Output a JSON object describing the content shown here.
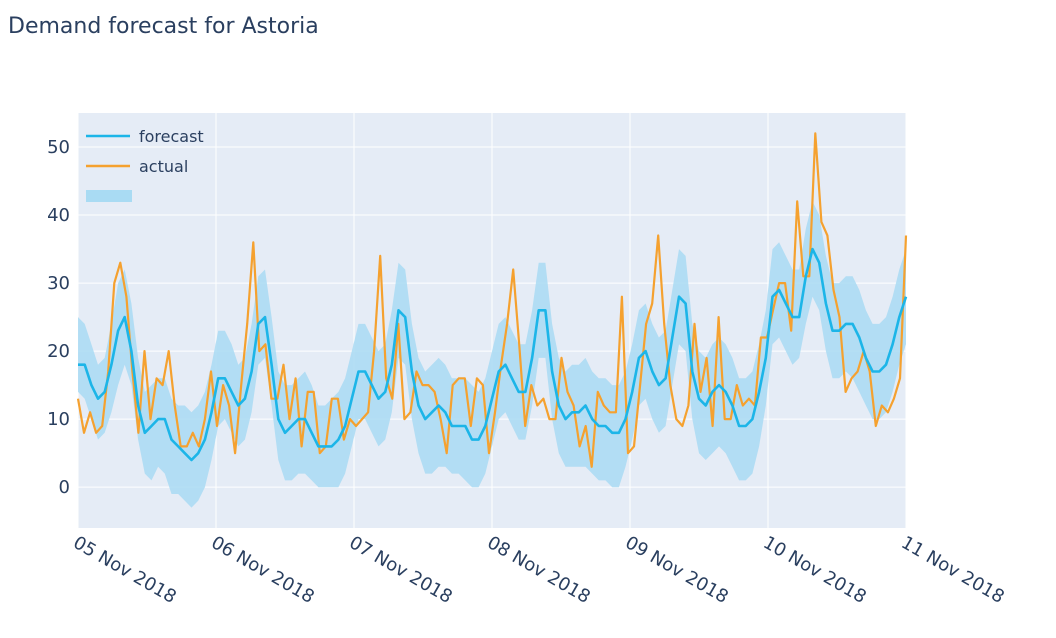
{
  "title": "Demand forecast for Astoria",
  "colors": {
    "forecast": "#1cb5e8",
    "actual": "#f5a12f",
    "band": "#a9dbf3",
    "plot_bg": "#e5ecf6",
    "grid": "#ffffff",
    "text": "#2a3f5f"
  },
  "chart_data": {
    "type": "line",
    "title": "Demand forecast for Astoria",
    "xlabel": "",
    "ylabel": "",
    "x_start": "2018-11-05 00:00",
    "x_step": "2 hours",
    "xlim": [
      "2018-11-05",
      "2018-11-11"
    ],
    "ylim": [
      -6,
      55
    ],
    "y_ticks": [
      0,
      10,
      20,
      30,
      40,
      50
    ],
    "x_tick_labels": [
      "05 Nov 2018",
      "06 Nov 2018",
      "07 Nov 2018",
      "08 Nov 2018",
      "09 Nov 2018",
      "10 Nov 2018",
      "11 Nov 2018"
    ],
    "grid": true,
    "legend_position": "top-left",
    "legend": [
      "forecast",
      "actual",
      ""
    ],
    "series": [
      {
        "name": "forecast",
        "values": [
          18,
          18,
          15,
          13,
          14,
          18,
          23,
          25,
          20,
          12,
          8,
          9,
          10,
          10,
          7,
          6,
          5,
          4,
          5,
          7,
          11,
          16,
          16,
          14,
          12,
          13,
          17,
          24,
          25,
          18,
          10,
          8,
          9,
          10,
          10,
          8,
          6,
          6,
          6,
          7,
          9,
          13,
          17,
          17,
          15,
          13,
          14,
          18,
          26,
          25,
          17,
          12,
          10,
          11,
          12,
          11,
          9,
          9,
          9,
          7,
          7,
          9,
          13,
          17,
          18,
          16,
          14,
          14,
          19,
          26,
          26,
          17,
          12,
          10,
          11,
          11,
          12,
          10,
          9,
          9,
          8,
          8,
          10,
          14,
          19,
          20,
          17,
          15,
          16,
          22,
          28,
          27,
          17,
          13,
          12,
          14,
          15,
          14,
          12,
          9,
          9,
          10,
          14,
          19,
          28,
          29,
          27,
          25,
          25,
          31,
          35,
          33,
          27,
          23,
          23,
          24,
          24,
          22,
          19,
          17,
          17,
          18,
          21,
          25,
          28
        ]
      },
      {
        "name": "actual",
        "values": [
          13,
          8,
          11,
          8,
          9,
          17,
          30,
          33,
          28,
          17,
          8,
          20,
          10,
          16,
          15,
          20,
          12,
          6,
          6,
          8,
          6,
          10,
          17,
          9,
          15,
          12,
          5,
          15,
          24,
          36,
          20,
          21,
          13,
          13,
          18,
          10,
          16,
          6,
          14,
          14,
          5,
          6,
          13,
          13,
          7,
          10,
          9,
          10,
          11,
          20,
          34,
          16,
          13,
          24,
          10,
          11,
          17,
          15,
          15,
          14,
          10,
          5,
          15,
          16,
          16,
          9,
          16,
          15,
          5,
          11,
          18,
          24,
          32,
          21,
          9,
          15,
          12,
          13,
          10,
          10,
          19,
          14,
          12,
          6,
          9,
          3,
          14,
          12,
          11,
          11,
          28,
          5,
          6,
          15,
          24,
          27,
          37,
          24,
          15,
          10,
          9,
          12,
          24,
          14,
          19,
          9,
          25,
          10,
          10,
          15,
          12,
          13,
          12,
          22,
          22,
          26,
          30,
          30,
          23,
          42,
          31,
          31,
          52,
          39,
          37,
          29,
          25,
          14,
          16,
          17,
          20,
          17,
          9,
          12,
          11,
          13,
          16,
          37
        ]
      }
    ],
    "band": {
      "lower": [
        14,
        13,
        10,
        7,
        8,
        11,
        15,
        18,
        15,
        7,
        2,
        1,
        3,
        2,
        -1,
        -1,
        -2,
        -3,
        -2,
        0,
        4,
        9,
        10,
        8,
        6,
        7,
        11,
        18,
        19,
        12,
        4,
        1,
        1,
        2,
        2,
        1,
        0,
        0,
        0,
        0,
        2,
        6,
        10,
        10,
        8,
        6,
        7,
        11,
        19,
        18,
        10,
        5,
        2,
        2,
        3,
        3,
        2,
        2,
        1,
        0,
        0,
        2,
        6,
        10,
        11,
        9,
        7,
        7,
        12,
        19,
        19,
        10,
        5,
        3,
        3,
        3,
        3,
        2,
        1,
        1,
        0,
        0,
        3,
        7,
        12,
        13,
        10,
        8,
        9,
        15,
        21,
        20,
        10,
        5,
        4,
        5,
        6,
        5,
        3,
        1,
        1,
        2,
        6,
        12,
        21,
        22,
        20,
        18,
        19,
        24,
        28,
        26,
        20,
        16,
        16,
        17,
        16,
        14,
        12,
        10,
        10,
        11,
        14,
        18,
        21
      ],
      "upper": [
        25,
        24,
        21,
        18,
        19,
        24,
        30,
        32,
        27,
        19,
        14,
        15,
        16,
        16,
        13,
        12,
        12,
        11,
        12,
        14,
        18,
        23,
        23,
        21,
        18,
        19,
        24,
        31,
        32,
        25,
        17,
        15,
        15,
        16,
        17,
        15,
        12,
        12,
        13,
        14,
        16,
        20,
        24,
        24,
        22,
        20,
        21,
        26,
        33,
        32,
        24,
        19,
        17,
        18,
        19,
        18,
        16,
        16,
        16,
        15,
        14,
        16,
        20,
        24,
        25,
        23,
        21,
        21,
        26,
        33,
        33,
        24,
        19,
        17,
        18,
        18,
        19,
        17,
        16,
        16,
        15,
        15,
        17,
        21,
        26,
        27,
        24,
        22,
        23,
        29,
        35,
        34,
        24,
        20,
        19,
        21,
        22,
        21,
        19,
        16,
        16,
        17,
        21,
        26,
        35,
        36,
        34,
        32,
        32,
        38,
        42,
        40,
        34,
        30,
        30,
        31,
        31,
        29,
        26,
        24,
        24,
        25,
        28,
        32,
        35
      ]
    }
  }
}
